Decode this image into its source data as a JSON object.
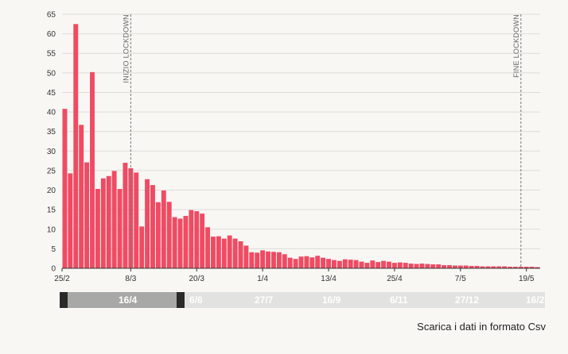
{
  "chart_data": {
    "type": "bar",
    "yticks": [
      0,
      5,
      10,
      15,
      20,
      25,
      30,
      35,
      40,
      45,
      50,
      55,
      60,
      65
    ],
    "ylim": [
      0,
      65
    ],
    "xtick_labels": [
      "25/2",
      "8/3",
      "20/3",
      "1/4",
      "13/4",
      "25/4",
      "7/5",
      "19/5"
    ],
    "categories": [
      "25/2",
      "26/2",
      "27/2",
      "28/2",
      "29/2",
      "1/3",
      "2/3",
      "3/3",
      "4/3",
      "5/3",
      "6/3",
      "7/3",
      "8/3",
      "9/3",
      "10/3",
      "11/3",
      "12/3",
      "13/3",
      "14/3",
      "15/3",
      "16/3",
      "17/3",
      "18/3",
      "19/3",
      "20/3",
      "21/3",
      "22/3",
      "23/3",
      "24/3",
      "25/3",
      "26/3",
      "27/3",
      "28/3",
      "29/3",
      "30/3",
      "31/3",
      "1/4",
      "2/4",
      "3/4",
      "4/4",
      "5/4",
      "6/4",
      "7/4",
      "8/4",
      "9/4",
      "10/4",
      "11/4",
      "12/4",
      "13/4",
      "14/4",
      "15/4",
      "16/4",
      "17/4",
      "18/4",
      "19/4",
      "20/4",
      "21/4",
      "22/4",
      "23/4",
      "24/4",
      "25/4",
      "26/4",
      "27/4",
      "28/4",
      "29/4",
      "30/4",
      "1/5",
      "2/5",
      "3/5",
      "4/5",
      "5/5",
      "6/5",
      "7/5",
      "8/5",
      "9/5",
      "10/5",
      "11/5",
      "12/5",
      "13/5",
      "14/5",
      "15/5",
      "16/5",
      "17/5",
      "18/5",
      "19/5",
      "20/5",
      "21/5"
    ],
    "values": [
      40.8,
      24.3,
      62.5,
      36.7,
      27.1,
      50.2,
      20.3,
      23.0,
      23.6,
      24.9,
      20.3,
      27.0,
      25.6,
      24.5,
      10.7,
      22.8,
      21.3,
      16.9,
      19.9,
      17.0,
      13.1,
      12.7,
      13.4,
      14.9,
      14.6,
      14.0,
      10.5,
      8.1,
      8.2,
      7.6,
      8.4,
      7.6,
      6.9,
      5.8,
      4.1,
      4.0,
      4.6,
      4.3,
      4.2,
      4.1,
      3.6,
      2.7,
      2.4,
      3.0,
      3.1,
      2.8,
      3.2,
      2.7,
      2.4,
      2.1,
      1.9,
      2.3,
      2.2,
      2.1,
      1.7,
      1.4,
      2.0,
      1.6,
      1.9,
      1.7,
      1.4,
      1.5,
      1.4,
      1.2,
      1.1,
      1.2,
      1.1,
      1.0,
      1.0,
      0.8,
      0.8,
      0.7,
      0.7,
      0.7,
      0.6,
      0.6,
      0.5,
      0.5,
      0.5,
      0.5,
      0.5,
      0.4,
      0.4,
      0.4,
      0.4,
      0.4,
      0.3
    ],
    "bar_color": "#ef4b63",
    "grid": true,
    "annotations": [
      {
        "label": "INIZIO LOCKDOWN",
        "x": "8/3"
      },
      {
        "label": "FINE LOCKDOWN",
        "x": "18/5"
      }
    ]
  },
  "timeline": {
    "selected_label": "16/4",
    "labels": [
      "6/6",
      "27/7",
      "16/9",
      "6/11",
      "27/12",
      "16/2"
    ]
  },
  "download": {
    "label": "Scarica i dati in formato Csv"
  }
}
